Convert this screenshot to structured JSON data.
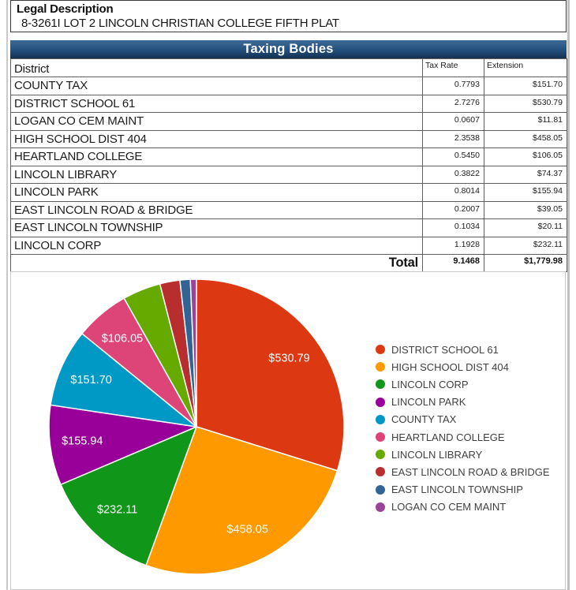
{
  "legal": {
    "title": "Legal Description",
    "text": "8-3261I LOT 2 LINCOLN CHRISTIAN COLLEGE FIFTH PLAT"
  },
  "taxing_bodies": {
    "title": "Taxing Bodies",
    "columns": [
      "District",
      "Tax Rate",
      "Extension"
    ],
    "rows": [
      {
        "district": "COUNTY TAX",
        "rate": "0.7793",
        "extension": "$151.70"
      },
      {
        "district": "DISTRICT SCHOOL 61",
        "rate": "2.7276",
        "extension": "$530.79"
      },
      {
        "district": "LOGAN CO CEM MAINT",
        "rate": "0.0607",
        "extension": "$11.81"
      },
      {
        "district": "HIGH SCHOOL DIST 404",
        "rate": "2.3538",
        "extension": "$458.05"
      },
      {
        "district": "HEARTLAND COLLEGE",
        "rate": "0.5450",
        "extension": "$106.05"
      },
      {
        "district": "LINCOLN LIBRARY",
        "rate": "0.3822",
        "extension": "$74.37"
      },
      {
        "district": "LINCOLN PARK",
        "rate": "0.8014",
        "extension": "$155.94"
      },
      {
        "district": "EAST LINCOLN ROAD & BRIDGE",
        "rate": "0.2007",
        "extension": "$39.05"
      },
      {
        "district": "EAST LINCOLN TOWNSHIP",
        "rate": "0.1034",
        "extension": "$20.11"
      },
      {
        "district": "LINCOLN CORP",
        "rate": "1.1928",
        "extension": "$232.11"
      }
    ],
    "total": {
      "label": "Total",
      "rate": "9.1468",
      "extension": "$1,779.98"
    }
  },
  "chart_data": {
    "type": "pie",
    "title": "",
    "total": 1779.98,
    "start_angle_deg": 0,
    "direction": "clockwise",
    "legend_position": "right",
    "slices": [
      {
        "name": "DISTRICT SCHOOL 61",
        "value": 530.79,
        "label": "$530.79",
        "color": "#dc3912"
      },
      {
        "name": "HIGH SCHOOL DIST 404",
        "value": 458.05,
        "label": "$458.05",
        "color": "#ff9900"
      },
      {
        "name": "LINCOLN CORP",
        "value": 232.11,
        "label": "$232.11",
        "color": "#109618"
      },
      {
        "name": "LINCOLN PARK",
        "value": 155.94,
        "label": "$155.94",
        "color": "#990099"
      },
      {
        "name": "COUNTY TAX",
        "value": 151.7,
        "label": "$151.70",
        "color": "#0099c6"
      },
      {
        "name": "HEARTLAND COLLEGE",
        "value": 106.05,
        "label": "$106.05",
        "color": "#dd4477"
      },
      {
        "name": "LINCOLN LIBRARY",
        "value": 74.37,
        "label": "",
        "color": "#66aa00"
      },
      {
        "name": "EAST LINCOLN ROAD & BRIDGE",
        "value": 39.05,
        "label": "",
        "color": "#b82e2e"
      },
      {
        "name": "EAST LINCOLN TOWNSHIP",
        "value": 20.11,
        "label": "",
        "color": "#316395"
      },
      {
        "name": "LOGAN CO CEM MAINT",
        "value": 11.81,
        "label": "",
        "color": "#994499"
      }
    ]
  }
}
